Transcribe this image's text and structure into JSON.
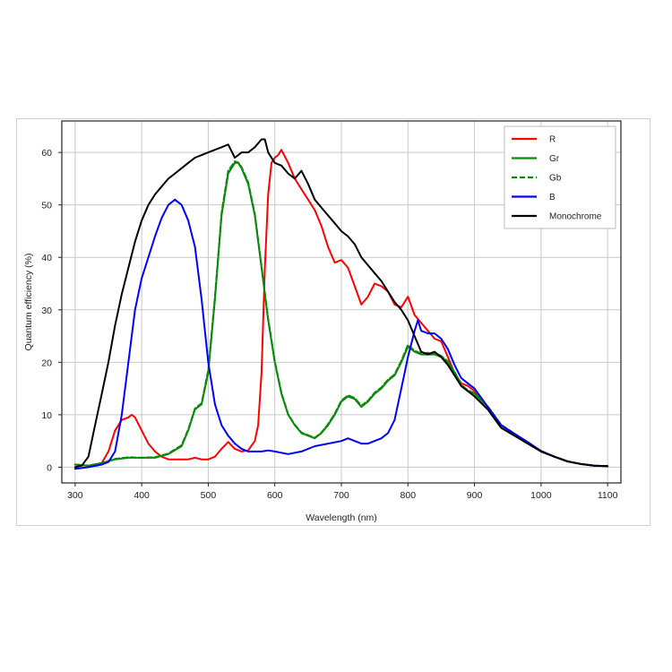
{
  "chart_data": {
    "type": "line",
    "title": "",
    "xlabel": "Wavelength (nm)",
    "ylabel": "Quantum efficiency (%)",
    "xlim": [
      280,
      1120
    ],
    "ylim": [
      -3,
      66
    ],
    "xticks": [
      300,
      400,
      500,
      600,
      700,
      800,
      900,
      1000,
      1100
    ],
    "yticks": [
      0,
      10,
      20,
      30,
      40,
      50,
      60
    ],
    "grid": true,
    "legend_position": "top-right",
    "series": [
      {
        "name": "R",
        "color": "#ff0000",
        "style": "solid",
        "x": [
          300,
          320,
          340,
          350,
          360,
          370,
          380,
          385,
          390,
          400,
          410,
          420,
          430,
          440,
          450,
          460,
          470,
          480,
          490,
          500,
          510,
          520,
          530,
          540,
          550,
          560,
          570,
          575,
          580,
          585,
          590,
          595,
          600,
          605,
          610,
          620,
          630,
          640,
          650,
          660,
          670,
          680,
          690,
          700,
          710,
          720,
          730,
          740,
          750,
          760,
          770,
          780,
          790,
          800,
          810,
          820,
          830,
          840,
          850,
          860,
          870,
          880,
          890,
          900,
          920,
          940,
          960,
          980,
          1000,
          1020,
          1040,
          1060,
          1080,
          1100
        ],
        "y": [
          0.5,
          0.3,
          0.8,
          3,
          7,
          9,
          9.5,
          10,
          9.5,
          7,
          4.5,
          3,
          2,
          1.5,
          1.5,
          1.5,
          1.5,
          1.8,
          1.5,
          1.5,
          2,
          3.5,
          4.8,
          3.5,
          3,
          3.2,
          5,
          8,
          18,
          38,
          52,
          58,
          59,
          59.5,
          60.5,
          58,
          55,
          53,
          51,
          49,
          46,
          42,
          39,
          39.5,
          38,
          34.5,
          31,
          32.5,
          35,
          34.5,
          33.5,
          31,
          30.5,
          32.5,
          29,
          27.5,
          26,
          24.5,
          24,
          21,
          18,
          16,
          15.5,
          14.5,
          11.5,
          8,
          6.2,
          4.6,
          3,
          2,
          1.1,
          0.6,
          0.3,
          0.2
        ]
      },
      {
        "name": "Gr",
        "color": "#0a8a0a",
        "style": "solid",
        "x": [
          300,
          320,
          340,
          360,
          380,
          400,
          420,
          440,
          460,
          470,
          480,
          490,
          500,
          510,
          520,
          530,
          540,
          545,
          550,
          560,
          570,
          580,
          590,
          600,
          610,
          620,
          630,
          640,
          650,
          660,
          670,
          680,
          690,
          700,
          710,
          720,
          730,
          740,
          750,
          760,
          770,
          780,
          790,
          800,
          810,
          820,
          830,
          840,
          850,
          860,
          870,
          880,
          890,
          900,
          920,
          940,
          960,
          980,
          1000,
          1020,
          1040,
          1060,
          1080,
          1100
        ],
        "y": [
          0.5,
          0.3,
          0.8,
          1.5,
          1.8,
          1.8,
          1.8,
          2.5,
          4,
          7,
          11,
          12,
          18,
          32,
          48,
          56,
          58,
          58,
          57,
          54,
          48,
          38,
          28,
          20,
          14,
          10,
          8,
          6.5,
          6,
          5.5,
          6.5,
          8,
          10,
          12.5,
          13.5,
          13,
          11.5,
          12.5,
          14,
          15,
          16.5,
          17.5,
          20,
          23,
          22,
          21.5,
          21.5,
          21.5,
          21,
          20,
          18,
          15.5,
          14.5,
          14,
          11.5,
          8,
          6.3,
          4.6,
          3,
          2,
          1.1,
          0.6,
          0.3,
          0.2
        ]
      },
      {
        "name": "Gb",
        "color": "#0a8a0a",
        "style": "dashed",
        "x": [
          300,
          320,
          340,
          360,
          380,
          400,
          420,
          440,
          460,
          470,
          480,
          490,
          500,
          510,
          520,
          530,
          540,
          545,
          550,
          560,
          570,
          580,
          590,
          600,
          610,
          620,
          630,
          640,
          650,
          660,
          670,
          680,
          690,
          700,
          710,
          720,
          730,
          740,
          750,
          760,
          770,
          780,
          790,
          800,
          810,
          820,
          830,
          840,
          850,
          860,
          870,
          880,
          890,
          900,
          920,
          940,
          960,
          980,
          1000,
          1020,
          1040,
          1060,
          1080,
          1100
        ],
        "y": [
          0.5,
          0.3,
          0.8,
          1.6,
          1.9,
          1.8,
          1.9,
          2.6,
          4.2,
          7.2,
          11.2,
          12.2,
          18.5,
          32.5,
          48.5,
          56.5,
          58.3,
          58.1,
          57.2,
          54.3,
          48.3,
          38.3,
          28.3,
          20.2,
          14.2,
          10.1,
          8.1,
          6.6,
          6.1,
          5.6,
          6.6,
          8.2,
          10.2,
          12.7,
          13.7,
          13.2,
          11.7,
          12.7,
          14.2,
          15.2,
          16.7,
          17.7,
          20.3,
          23.3,
          22.2,
          21.7,
          21.8,
          21.8,
          21.2,
          20.2,
          18.2,
          15.7,
          14.7,
          14.1,
          11.6,
          8.1,
          6.4,
          4.7,
          3.1,
          2,
          1.1,
          0.6,
          0.3,
          0.2
        ]
      },
      {
        "name": "B",
        "color": "#0000ff",
        "style": "solid",
        "x": [
          300,
          320,
          340,
          350,
          360,
          370,
          380,
          390,
          400,
          410,
          420,
          430,
          440,
          450,
          455,
          460,
          470,
          480,
          490,
          500,
          510,
          520,
          530,
          540,
          550,
          560,
          570,
          580,
          590,
          600,
          620,
          640,
          660,
          680,
          700,
          710,
          720,
          730,
          740,
          760,
          770,
          780,
          790,
          800,
          810,
          815,
          820,
          830,
          840,
          850,
          860,
          870,
          880,
          890,
          900,
          920,
          940,
          960,
          980,
          1000,
          1020,
          1040,
          1060,
          1080,
          1100
        ],
        "y": [
          -0.3,
          0,
          0.5,
          1,
          3,
          10,
          20,
          30,
          36,
          40,
          44,
          47.5,
          50,
          51,
          50.5,
          50,
          47,
          42,
          32,
          20,
          12,
          8,
          6,
          4.5,
          3.5,
          3,
          3,
          3,
          3.2,
          3,
          2.5,
          3,
          4,
          4.5,
          5,
          5.5,
          5,
          4.5,
          4.5,
          5.5,
          6.5,
          9,
          15,
          21,
          26,
          28,
          26,
          25.5,
          25.5,
          24.5,
          22.5,
          19.5,
          17,
          16,
          15,
          11.5,
          8,
          6.4,
          4.8,
          3.1,
          2,
          1.1,
          0.6,
          0.3,
          0.2
        ]
      },
      {
        "name": "Monochrome",
        "color": "#000000",
        "style": "solid",
        "x": [
          300,
          310,
          320,
          330,
          340,
          350,
          360,
          370,
          380,
          390,
          400,
          410,
          420,
          430,
          440,
          450,
          460,
          470,
          480,
          490,
          500,
          510,
          520,
          530,
          540,
          550,
          560,
          570,
          580,
          585,
          590,
          600,
          610,
          620,
          630,
          640,
          650,
          660,
          670,
          680,
          690,
          700,
          710,
          720,
          730,
          740,
          750,
          760,
          770,
          780,
          790,
          800,
          810,
          820,
          830,
          840,
          850,
          860,
          870,
          880,
          890,
          900,
          920,
          940,
          960,
          980,
          1000,
          1020,
          1040,
          1060,
          1080,
          1100
        ],
        "y": [
          0,
          0.3,
          2,
          8,
          14,
          20,
          27,
          33,
          38,
          43,
          47,
          50,
          52,
          53.5,
          55,
          56,
          57,
          58,
          59,
          59.5,
          60,
          60.5,
          61,
          61.5,
          59,
          60,
          60,
          61,
          62.5,
          62.5,
          60,
          58,
          57.5,
          56,
          55,
          56.5,
          54,
          51,
          49.5,
          48,
          46.5,
          45,
          44,
          42.5,
          40,
          38.5,
          37,
          35.5,
          33.5,
          31.5,
          30,
          28,
          25,
          22,
          21.5,
          22,
          21,
          19.5,
          17.5,
          15.5,
          14.5,
          13.5,
          11,
          7.5,
          6,
          4.5,
          3,
          2,
          1.1,
          0.6,
          0.3,
          0.2
        ]
      }
    ]
  }
}
